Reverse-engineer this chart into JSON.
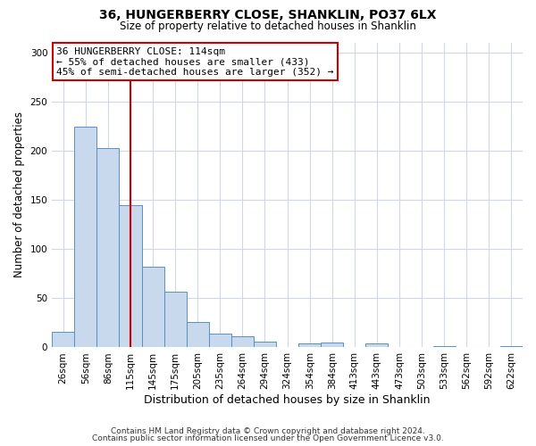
{
  "title": "36, HUNGERBERRY CLOSE, SHANKLIN, PO37 6LX",
  "subtitle": "Size of property relative to detached houses in Shanklin",
  "xlabel": "Distribution of detached houses by size in Shanklin",
  "ylabel": "Number of detached properties",
  "bar_labels": [
    "26sqm",
    "56sqm",
    "86sqm",
    "115sqm",
    "145sqm",
    "175sqm",
    "205sqm",
    "235sqm",
    "264sqm",
    "294sqm",
    "324sqm",
    "354sqm",
    "384sqm",
    "413sqm",
    "443sqm",
    "473sqm",
    "503sqm",
    "533sqm",
    "562sqm",
    "592sqm",
    "622sqm"
  ],
  "bar_heights": [
    16,
    224,
    203,
    145,
    82,
    57,
    26,
    14,
    11,
    6,
    0,
    4,
    5,
    0,
    4,
    0,
    0,
    1,
    0,
    0,
    1
  ],
  "bar_color": "#c9d9ed",
  "bar_edge_color": "#5a8fc3",
  "vline_x": 3,
  "vline_color": "#cc0000",
  "annotation_line1": "36 HUNGERBERRY CLOSE: 114sqm",
  "annotation_line2": "← 55% of detached houses are smaller (433)",
  "annotation_line3": "45% of semi-detached houses are larger (352) →",
  "annotation_box_color": "#ffffff",
  "annotation_box_edge": "#cc0000",
  "ylim": [
    0,
    310
  ],
  "yticks": [
    0,
    50,
    100,
    150,
    200,
    250,
    300
  ],
  "footer1": "Contains HM Land Registry data © Crown copyright and database right 2024.",
  "footer2": "Contains public sector information licensed under the Open Government Licence v3.0.",
  "bg_color": "#ffffff",
  "grid_color": "#d0d8e8"
}
